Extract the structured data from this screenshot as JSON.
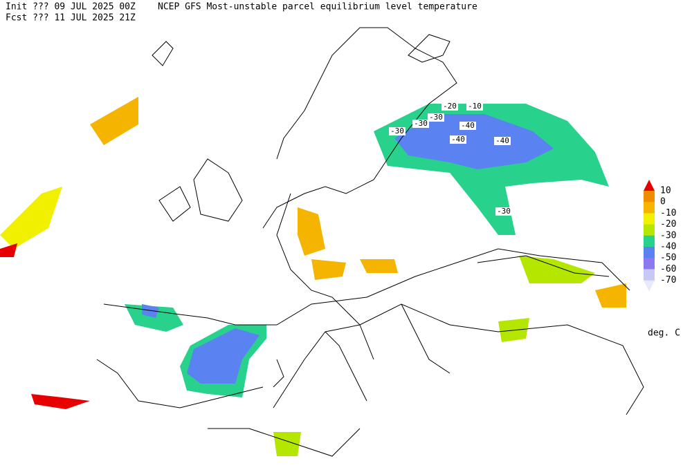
{
  "header": {
    "init": "Init  ??? 09 JUL 2025 00Z",
    "title": "NCEP GFS Most-unstable parcel equilibrium level temperature",
    "fcst": "Fcst ??? 11 JUL 2025 21Z"
  },
  "legend": {
    "ticks": [
      10,
      0,
      -10,
      -20,
      -30,
      -40,
      -50,
      -60,
      -70
    ],
    "colors": [
      "#e60000",
      "#f08c00",
      "#f5b400",
      "#f0f000",
      "#b4e600",
      "#28d28c",
      "#5a82f0",
      "#8c78f0",
      "#c8c8f5",
      "#e8e8ff"
    ],
    "units": "deg. C"
  },
  "contour_labels": [
    "-20",
    "-10",
    "-30",
    "-30",
    "-40",
    "-30",
    "-40",
    "-40",
    "-30"
  ]
}
